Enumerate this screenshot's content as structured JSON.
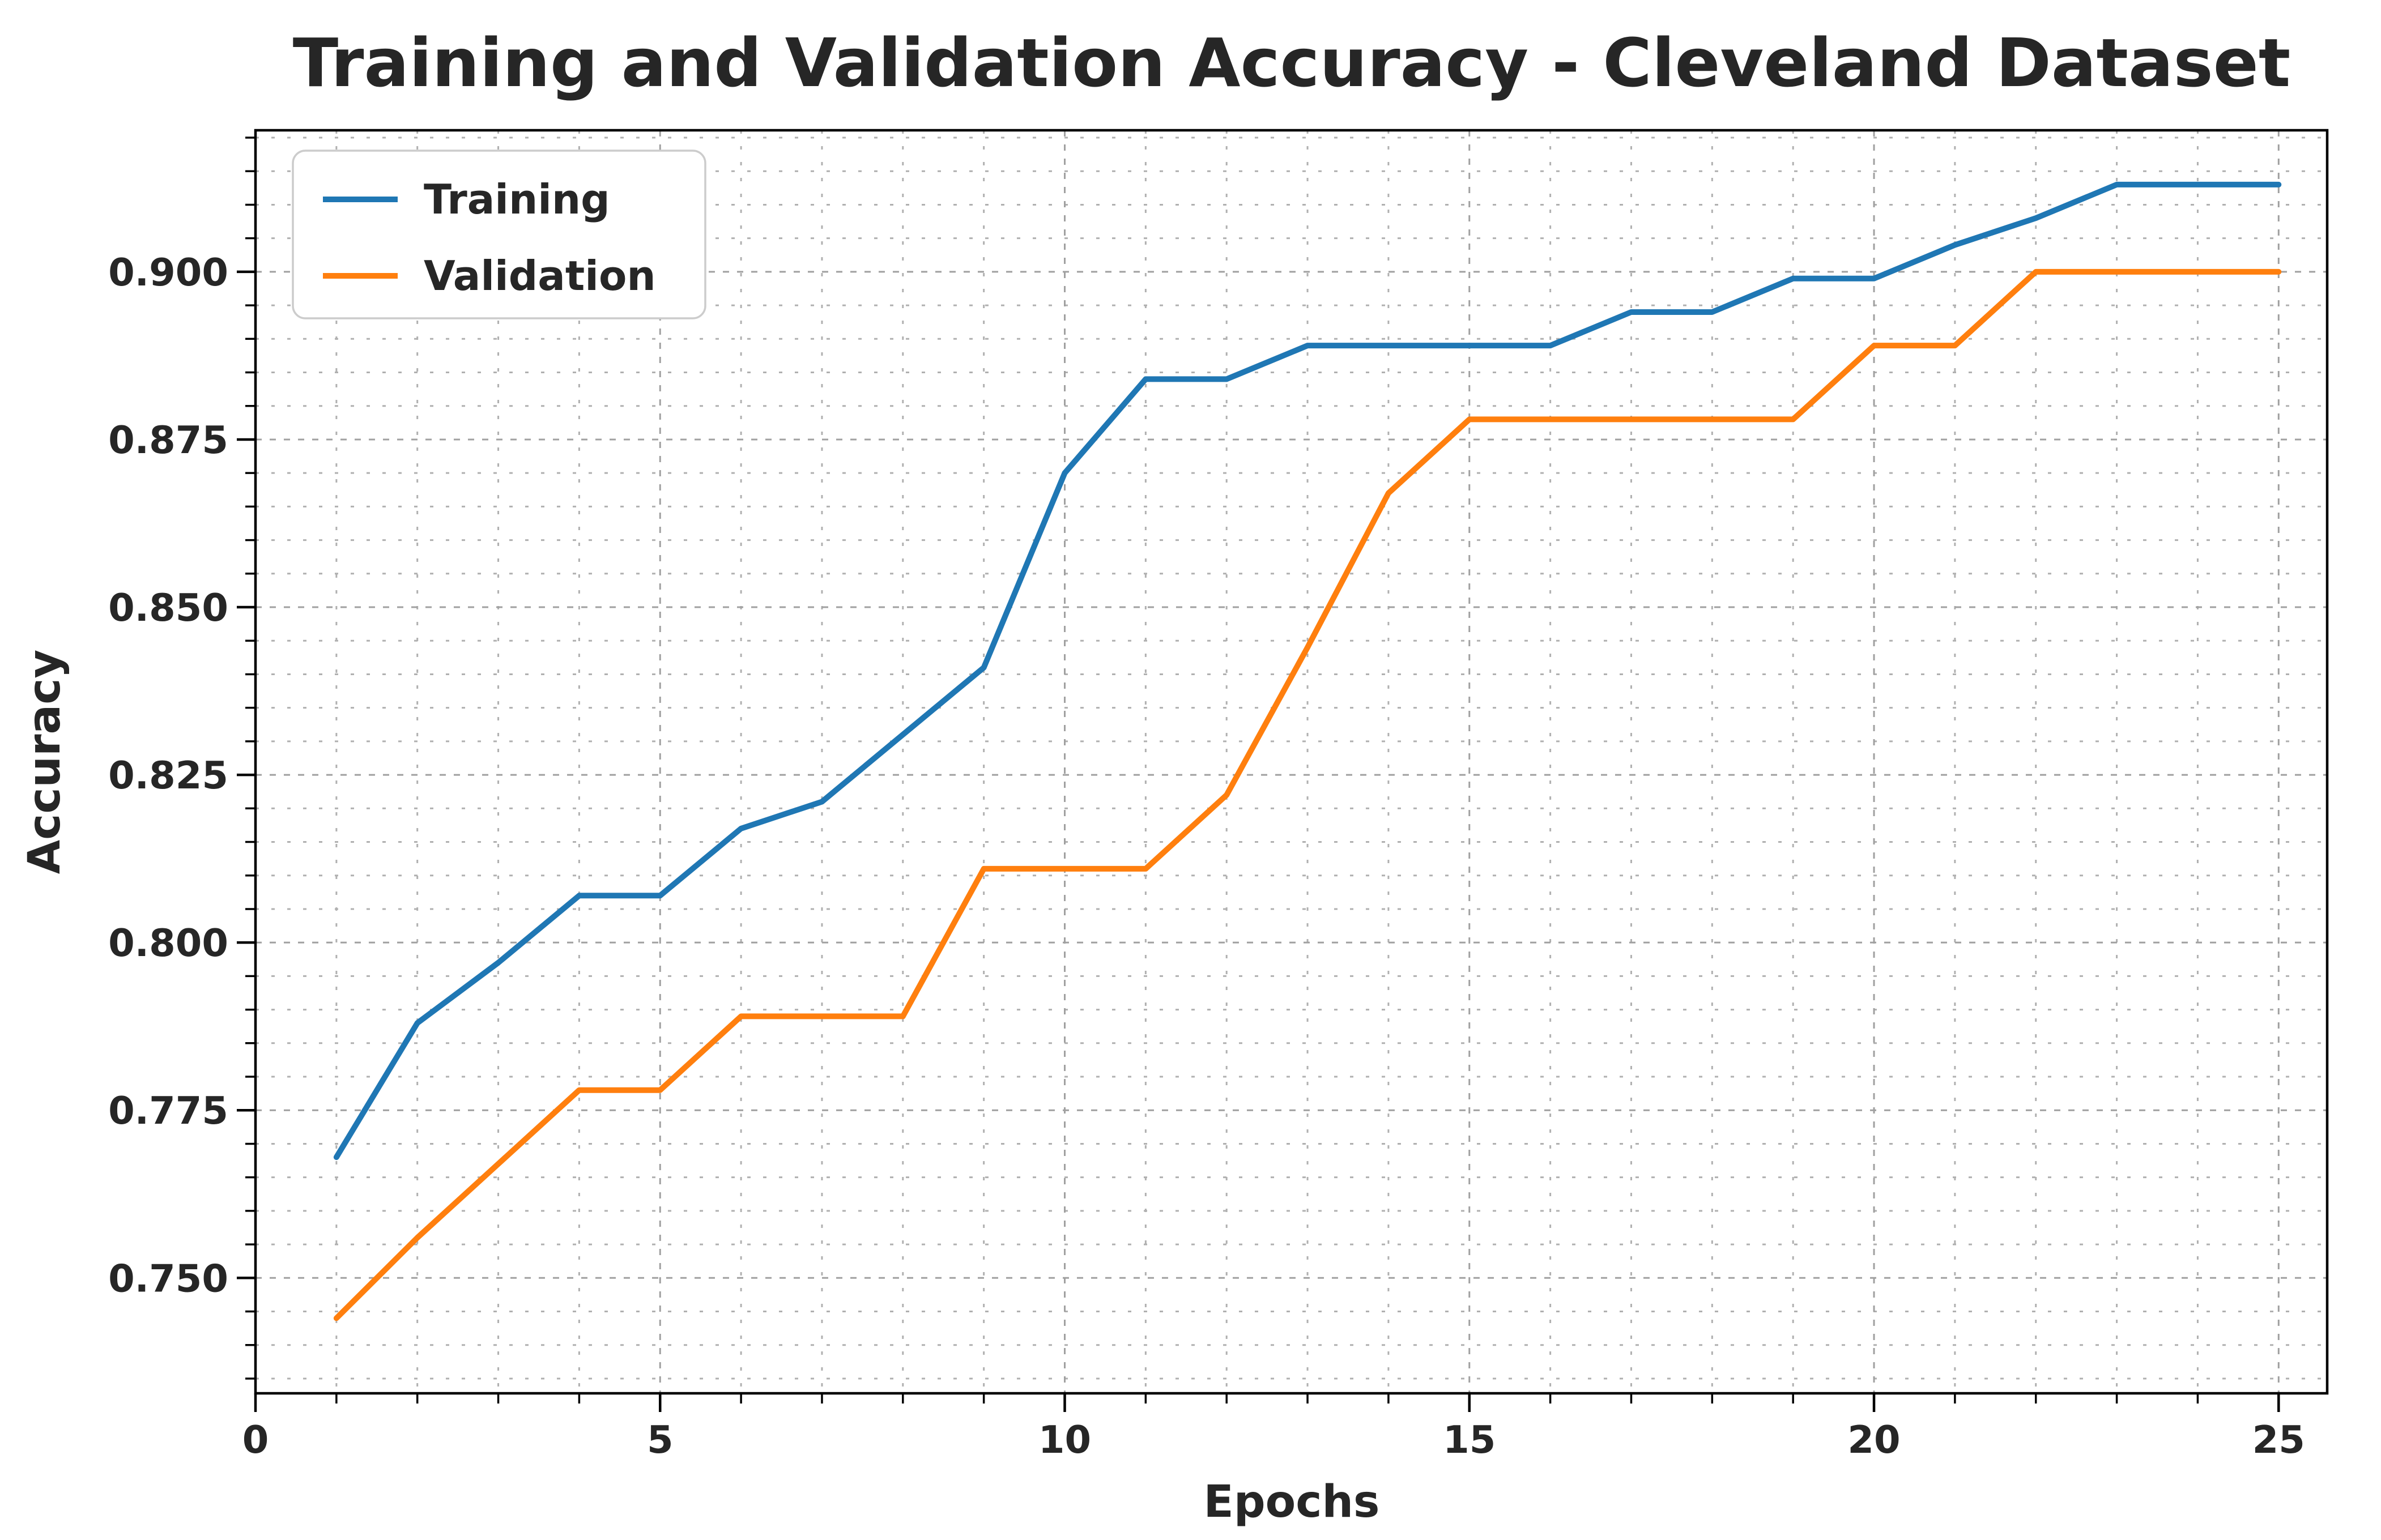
{
  "chart_data": {
    "type": "line",
    "title": "Training and Validation Accuracy - Cleveland Dataset",
    "xlabel": "Epochs",
    "ylabel": "Accuracy",
    "x": [
      1,
      2,
      3,
      4,
      5,
      6,
      7,
      8,
      9,
      10,
      11,
      12,
      13,
      14,
      15,
      16,
      17,
      18,
      19,
      20,
      21,
      22,
      23,
      24,
      25
    ],
    "series": [
      {
        "name": "Training",
        "color": "#1f77b4",
        "values": [
          0.768,
          0.788,
          0.797,
          0.807,
          0.807,
          0.817,
          0.821,
          0.831,
          0.841,
          0.87,
          0.884,
          0.884,
          0.889,
          0.889,
          0.889,
          0.889,
          0.894,
          0.894,
          0.899,
          0.899,
          0.904,
          0.908,
          0.913,
          0.913,
          0.913
        ]
      },
      {
        "name": "Validation",
        "color": "#ff7f0e",
        "values": [
          0.744,
          0.756,
          0.767,
          0.778,
          0.778,
          0.789,
          0.789,
          0.789,
          0.811,
          0.811,
          0.811,
          0.822,
          0.844,
          0.867,
          0.878,
          0.878,
          0.878,
          0.878,
          0.878,
          0.889,
          0.889,
          0.9,
          0.9,
          0.9,
          0.9
        ]
      }
    ],
    "xlim": [
      0,
      25.6
    ],
    "ylim": [
      0.7328,
      0.9211
    ],
    "x_ticks": {
      "labels": [
        "0",
        "5",
        "10",
        "15",
        "20",
        "25"
      ],
      "values": [
        0,
        5,
        10,
        15,
        20,
        25
      ],
      "minor_step": 1
    },
    "y_ticks": {
      "labels": [
        "0.750",
        "0.775",
        "0.800",
        "0.825",
        "0.850",
        "0.875",
        "0.900"
      ],
      "values": [
        0.75,
        0.775,
        0.8,
        0.825,
        0.85,
        0.875,
        0.9
      ],
      "minor_step": 0.005
    },
    "grid": {
      "on": true,
      "major_color": "#a0a0a0",
      "minor_color": "#b0b0b0"
    },
    "legend": {
      "position": "upper left"
    },
    "text_color": "#262626",
    "background": "#ffffff"
  }
}
